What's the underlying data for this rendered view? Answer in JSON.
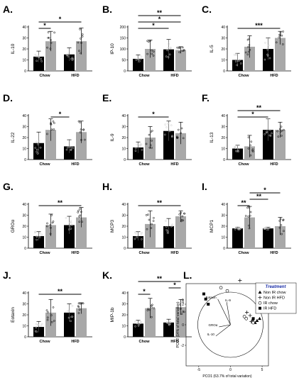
{
  "chart_data": [
    {
      "id": "A",
      "type": "bar",
      "label": "A.",
      "ylabel": "IL-10",
      "ylim": [
        0,
        40
      ],
      "yticks": [
        0,
        10,
        20,
        30,
        40
      ],
      "groups": [
        "Chow",
        "HFD"
      ],
      "bars": [
        {
          "value": 13,
          "err": 5
        },
        {
          "value": 27,
          "err": 9
        },
        {
          "value": 15,
          "err": 6
        },
        {
          "value": 27,
          "err": 12
        }
      ],
      "sig": [
        {
          "from": 0,
          "to": 1,
          "label": "*",
          "level": 0
        },
        {
          "from": 0,
          "to": 3,
          "label": "*",
          "level": 1
        }
      ]
    },
    {
      "id": "B",
      "type": "bar",
      "label": "B.",
      "ylabel": "IP-10",
      "ylim": [
        0,
        200
      ],
      "yticks": [
        0,
        50,
        100,
        150,
        200
      ],
      "groups": [
        "Chow",
        "HFD"
      ],
      "bars": [
        {
          "value": 55,
          "err": 18
        },
        {
          "value": 100,
          "err": 40
        },
        {
          "value": 98,
          "err": 45
        },
        {
          "value": 95,
          "err": 15
        }
      ],
      "sig": [
        {
          "from": 0,
          "to": 2,
          "label": "*",
          "level": 0
        },
        {
          "from": 0,
          "to": 3,
          "label": "*",
          "level": 1
        },
        {
          "from": 0,
          "to": 3,
          "label": "**",
          "level": 2
        }
      ]
    },
    {
      "id": "C",
      "type": "bar",
      "label": "C.",
      "ylabel": "IL-5",
      "ylim": [
        0,
        40
      ],
      "yticks": [
        0,
        10,
        20,
        30,
        40
      ],
      "groups": [
        "Chow",
        "HFD"
      ],
      "bars": [
        {
          "value": 10,
          "err": 6
        },
        {
          "value": 22,
          "err": 10
        },
        {
          "value": 20,
          "err": 10
        },
        {
          "value": 30,
          "err": 6
        }
      ],
      "sig": [
        {
          "from": 0,
          "to": 3,
          "label": "***",
          "level": 0
        }
      ]
    },
    {
      "id": "D",
      "type": "bar",
      "label": "D.",
      "ylabel": "IL-22",
      "ylim": [
        0,
        40
      ],
      "yticks": [
        0,
        10,
        20,
        30,
        40
      ],
      "groups": [
        "Chow",
        "HFD"
      ],
      "bars": [
        {
          "value": 15,
          "err": 10
        },
        {
          "value": 27,
          "err": 10
        },
        {
          "value": 12,
          "err": 6
        },
        {
          "value": 25,
          "err": 10
        }
      ],
      "sig": [
        {
          "from": 1,
          "to": 2,
          "label": "*",
          "level": 0
        }
      ]
    },
    {
      "id": "E",
      "type": "bar",
      "label": "E.",
      "ylabel": "IL-9",
      "ylim": [
        0,
        40
      ],
      "yticks": [
        0,
        10,
        20,
        30,
        40
      ],
      "groups": [
        "Chow",
        "HFD"
      ],
      "bars": [
        {
          "value": 11,
          "err": 5
        },
        {
          "value": 20,
          "err": 10
        },
        {
          "value": 26,
          "err": 9
        },
        {
          "value": 24,
          "err": 10
        }
      ],
      "sig": [
        {
          "from": 0,
          "to": 2,
          "label": "*",
          "level": 0
        }
      ]
    },
    {
      "id": "F",
      "type": "bar",
      "label": "F.",
      "ylabel": "IL-13",
      "ylim": [
        0,
        40
      ],
      "yticks": [
        0,
        10,
        20,
        30,
        40
      ],
      "groups": [
        "Chow",
        "HFD"
      ],
      "bars": [
        {
          "value": 10,
          "err": 3
        },
        {
          "value": 12,
          "err": 10
        },
        {
          "value": 27,
          "err": 10
        },
        {
          "value": 27,
          "err": 7
        }
      ],
      "sig": [
        {
          "from": 0,
          "to": 2,
          "label": "*",
          "level": 0
        },
        {
          "from": 0,
          "to": 3,
          "label": "**",
          "level": 1
        }
      ]
    },
    {
      "id": "G",
      "type": "bar",
      "label": "G.",
      "ylabel": "GROα",
      "ylim": [
        0,
        40
      ],
      "yticks": [
        0,
        10,
        20,
        30,
        40
      ],
      "groups": [
        "Chow",
        "HFD"
      ],
      "bars": [
        {
          "value": 11,
          "err": 4
        },
        {
          "value": 21,
          "err": 10
        },
        {
          "value": 21,
          "err": 8
        },
        {
          "value": 28,
          "err": 9
        }
      ],
      "sig": [
        {
          "from": 0,
          "to": 3,
          "label": "**",
          "level": 0
        }
      ]
    },
    {
      "id": "H",
      "type": "bar",
      "label": "H.",
      "ylabel": "MCP3",
      "ylim": [
        0,
        40
      ],
      "yticks": [
        0,
        10,
        20,
        30,
        40
      ],
      "groups": [
        "Chow",
        "HFD"
      ],
      "bars": [
        {
          "value": 11,
          "err": 4
        },
        {
          "value": 22,
          "err": 12
        },
        {
          "value": 20,
          "err": 7
        },
        {
          "value": 29,
          "err": 5
        }
      ],
      "sig": [
        {
          "from": 0,
          "to": 3,
          "label": "**",
          "level": 0
        }
      ]
    },
    {
      "id": "I",
      "type": "bar",
      "label": "I.",
      "ylabel": "MCP1",
      "ylim": [
        0,
        40
      ],
      "yticks": [
        0,
        10,
        20,
        30,
        40
      ],
      "groups": [
        "Chow",
        "HFD"
      ],
      "bars": [
        {
          "value": 18,
          "err": 1
        },
        {
          "value": 28,
          "err": 10
        },
        {
          "value": 18,
          "err": 1
        },
        {
          "value": 20,
          "err": 8
        }
      ],
      "sig": [
        {
          "from": 0,
          "to": 1,
          "label": "**",
          "level": 0
        },
        {
          "from": 1,
          "to": 2,
          "label": "**",
          "level": 1
        },
        {
          "from": 1,
          "to": 3,
          "label": "*",
          "level": 2
        }
      ]
    },
    {
      "id": "J",
      "type": "bar",
      "label": "J.",
      "ylabel": "Eotaxin",
      "ylim": [
        0,
        40
      ],
      "yticks": [
        0,
        10,
        20,
        30,
        40
      ],
      "groups": [
        "Chow",
        "HFD"
      ],
      "bars": [
        {
          "value": 9,
          "err": 5
        },
        {
          "value": 22,
          "err": 12
        },
        {
          "value": 22,
          "err": 8
        },
        {
          "value": 26,
          "err": 5
        }
      ],
      "sig": [
        {
          "from": 0,
          "to": 3,
          "label": "**",
          "level": 0
        }
      ]
    },
    {
      "id": "K",
      "type": "bar",
      "label": "K.",
      "ylabel": "MIP-1b",
      "ylim": [
        0,
        40
      ],
      "yticks": [
        0,
        10,
        20,
        30,
        40
      ],
      "groups": [
        "Chow",
        "HFD"
      ],
      "bars": [
        {
          "value": 12,
          "err": 3
        },
        {
          "value": 26,
          "err": 9
        },
        {
          "value": 13,
          "err": 3
        },
        {
          "value": 27,
          "err": 7
        }
      ],
      "sig": [
        {
          "from": 0,
          "to": 1,
          "label": "*",
          "level": 0
        },
        {
          "from": 2,
          "to": 3,
          "label": "*",
          "level": 1
        },
        {
          "from": 0,
          "to": 3,
          "label": "**",
          "level": 2
        }
      ]
    },
    {
      "id": "L",
      "type": "scatter",
      "label": "L.",
      "xlabel": "PCO1 (63.7% of total variation)",
      "ylabel": "PCO2 (14% of total variation)",
      "xlim": [
        -7,
        6
      ],
      "ylim": [
        -4,
        4
      ],
      "xticks": [
        -5,
        0,
        5
      ],
      "yticks": [
        -2,
        0,
        2
      ],
      "legend": {
        "title": "Treatment",
        "entries": [
          "Non IR chow",
          "Non IR HFD",
          "IR chow",
          "IR HFD"
        ],
        "position": "top-right"
      },
      "vectors": [
        {
          "name": "Eotaxin",
          "x": -2.0,
          "y": 2.5
        },
        {
          "name": "IL-9",
          "x": -0.6,
          "y": 2.2
        },
        {
          "name": "GROα",
          "x": -1.8,
          "y": -0.2
        },
        {
          "name": "IL-10",
          "x": -2.3,
          "y": -1.1
        }
      ],
      "series": [
        {
          "name": "Non IR chow",
          "marker": "triangle",
          "points": [
            [
              3.5,
              0.5
            ],
            [
              4.2,
              0.4
            ],
            [
              4.6,
              0.6
            ],
            [
              3.9,
              0.2
            ]
          ]
        },
        {
          "name": "Non IR HFD",
          "marker": "plus",
          "points": [
            [
              1.5,
              4.3
            ],
            [
              2.6,
              1.2
            ],
            [
              3.1,
              0.9
            ],
            [
              3.3,
              0.3
            ]
          ]
        },
        {
          "name": "IR chow",
          "marker": "circle",
          "points": [
            [
              -1.5,
              3.6
            ],
            [
              -0.5,
              3.3
            ],
            [
              2.2,
              0.8
            ],
            [
              2.5,
              0.6
            ],
            [
              3.6,
              0.2
            ]
          ]
        },
        {
          "name": "IR HFD",
          "marker": "square",
          "points": [
            [
              -4.2,
              3.0
            ],
            [
              -3.9,
              2.5
            ],
            [
              -3.5,
              2.0
            ],
            [
              3.6,
              0.6
            ]
          ]
        }
      ]
    }
  ]
}
